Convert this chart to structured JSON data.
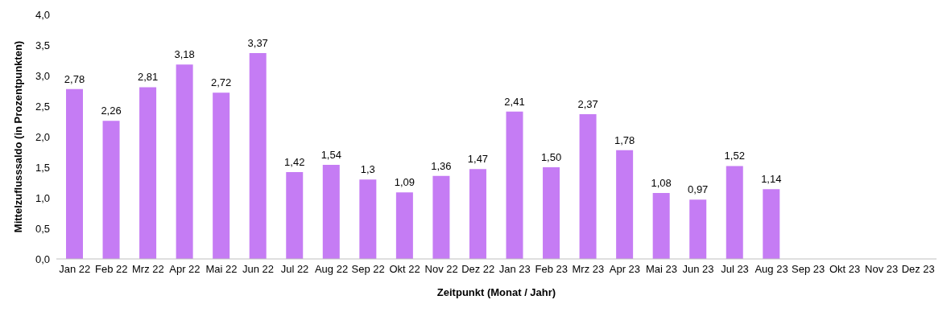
{
  "chart_data": {
    "type": "bar",
    "xlabel": "Zeitpunkt (Monat / Jahr)",
    "ylabel": "Mittelzuflusssaldo (in Prozentpunkten)",
    "categories": [
      "Jan 22",
      "Feb 22",
      "Mrz 22",
      "Apr 22",
      "Mai 22",
      "Jun 22",
      "Jul 22",
      "Aug 22",
      "Sep 22",
      "Okt 22",
      "Nov 22",
      "Dez 22",
      "Jan 23",
      "Feb 23",
      "Mrz 23",
      "Apr 23",
      "Mai 23",
      "Jun 23",
      "Jul 23",
      "Aug 23",
      "Sep 23",
      "Okt 23",
      "Nov 23",
      "Dez 23"
    ],
    "values": [
      2.78,
      2.26,
      2.81,
      3.18,
      2.72,
      3.37,
      1.42,
      1.54,
      1.3,
      1.09,
      1.36,
      1.47,
      2.41,
      1.5,
      2.37,
      1.78,
      1.08,
      0.97,
      1.52,
      1.14,
      null,
      null,
      null,
      null
    ],
    "value_labels": [
      "2,78",
      "2,26",
      "2,81",
      "3,18",
      "2,72",
      "3,37",
      "1,42",
      "1,54",
      "1,3",
      "1,09",
      "1,36",
      "1,47",
      "2,41",
      "1,50",
      "2,37",
      "1,78",
      "1,08",
      "0,97",
      "1,52",
      "1,14",
      null,
      null,
      null,
      null
    ],
    "color": "#c57cf4",
    "ylim": [
      0,
      4
    ],
    "yticks": [
      {
        "value": 0,
        "label": "0,0"
      },
      {
        "value": 0.5,
        "label": "0,5"
      },
      {
        "value": 1,
        "label": "1,0"
      },
      {
        "value": 1.5,
        "label": "1,5"
      },
      {
        "value": 2,
        "label": "2,0"
      },
      {
        "value": 2.5,
        "label": "2,5"
      },
      {
        "value": 3,
        "label": "3,0"
      },
      {
        "value": 3.5,
        "label": "3,5"
      },
      {
        "value": 4,
        "label": "4,0"
      }
    ],
    "grid": false,
    "legend": false
  }
}
